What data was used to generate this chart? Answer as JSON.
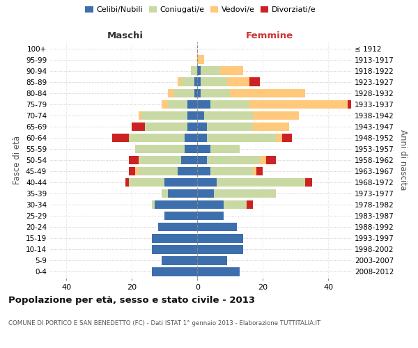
{
  "age_groups": [
    "100+",
    "95-99",
    "90-94",
    "85-89",
    "80-84",
    "75-79",
    "70-74",
    "65-69",
    "60-64",
    "55-59",
    "50-54",
    "45-49",
    "40-44",
    "35-39",
    "30-34",
    "25-29",
    "20-24",
    "15-19",
    "10-14",
    "5-9",
    "0-4"
  ],
  "birth_years": [
    "≤ 1912",
    "1913-1917",
    "1918-1922",
    "1923-1927",
    "1928-1932",
    "1933-1937",
    "1938-1942",
    "1943-1947",
    "1948-1952",
    "1953-1957",
    "1958-1962",
    "1963-1967",
    "1968-1972",
    "1973-1977",
    "1978-1982",
    "1983-1987",
    "1988-1992",
    "1993-1997",
    "1998-2002",
    "2003-2007",
    "2008-2012"
  ],
  "colors": {
    "celibi": "#3d6fad",
    "coniugati": "#c8d9a4",
    "vedovi": "#ffc87a",
    "divorziati": "#cc2222"
  },
  "maschi": {
    "celibi": [
      0,
      0,
      0,
      1,
      1,
      3,
      3,
      3,
      4,
      4,
      5,
      6,
      10,
      9,
      13,
      10,
      12,
      14,
      14,
      11,
      14
    ],
    "coniugati": [
      0,
      0,
      2,
      4,
      6,
      6,
      14,
      13,
      17,
      15,
      13,
      12,
      11,
      2,
      1,
      0,
      0,
      0,
      0,
      0,
      0
    ],
    "vedovi": [
      0,
      0,
      0,
      1,
      2,
      2,
      1,
      0,
      0,
      0,
      0,
      1,
      0,
      0,
      0,
      0,
      0,
      0,
      0,
      0,
      0
    ],
    "divorziati": [
      0,
      0,
      0,
      0,
      0,
      0,
      0,
      4,
      5,
      0,
      3,
      2,
      1,
      0,
      0,
      0,
      0,
      0,
      0,
      0,
      0
    ]
  },
  "femmine": {
    "celibi": [
      0,
      0,
      1,
      1,
      1,
      4,
      2,
      3,
      3,
      4,
      3,
      4,
      6,
      5,
      8,
      8,
      12,
      14,
      14,
      9,
      13
    ],
    "coniugati": [
      0,
      0,
      6,
      8,
      9,
      12,
      15,
      14,
      21,
      9,
      16,
      13,
      27,
      19,
      7,
      0,
      0,
      0,
      0,
      0,
      0
    ],
    "vedovi": [
      0,
      2,
      7,
      7,
      23,
      30,
      14,
      11,
      2,
      0,
      2,
      1,
      0,
      0,
      0,
      0,
      0,
      0,
      0,
      0,
      0
    ],
    "divorziati": [
      0,
      0,
      0,
      3,
      0,
      2,
      0,
      0,
      3,
      0,
      3,
      2,
      2,
      0,
      2,
      0,
      0,
      0,
      0,
      0,
      0
    ]
  },
  "xlim": [
    -45,
    47
  ],
  "xticks": [
    -40,
    -20,
    0,
    20,
    40
  ],
  "xticklabels": [
    "40",
    "20",
    "0",
    "20",
    "40"
  ],
  "title": "Popolazione per età, sesso e stato civile - 2013",
  "subtitle": "COMUNE DI PORTICO E SAN BENEDETTO (FC) - Dati ISTAT 1° gennaio 2013 - Elaborazione TUTTITALIA.IT",
  "ylabel_left": "Fasce di età",
  "ylabel_right": "Anni di nascita",
  "maschi_label": "Maschi",
  "femmine_label": "Femmine",
  "bg_color": "#ffffff"
}
